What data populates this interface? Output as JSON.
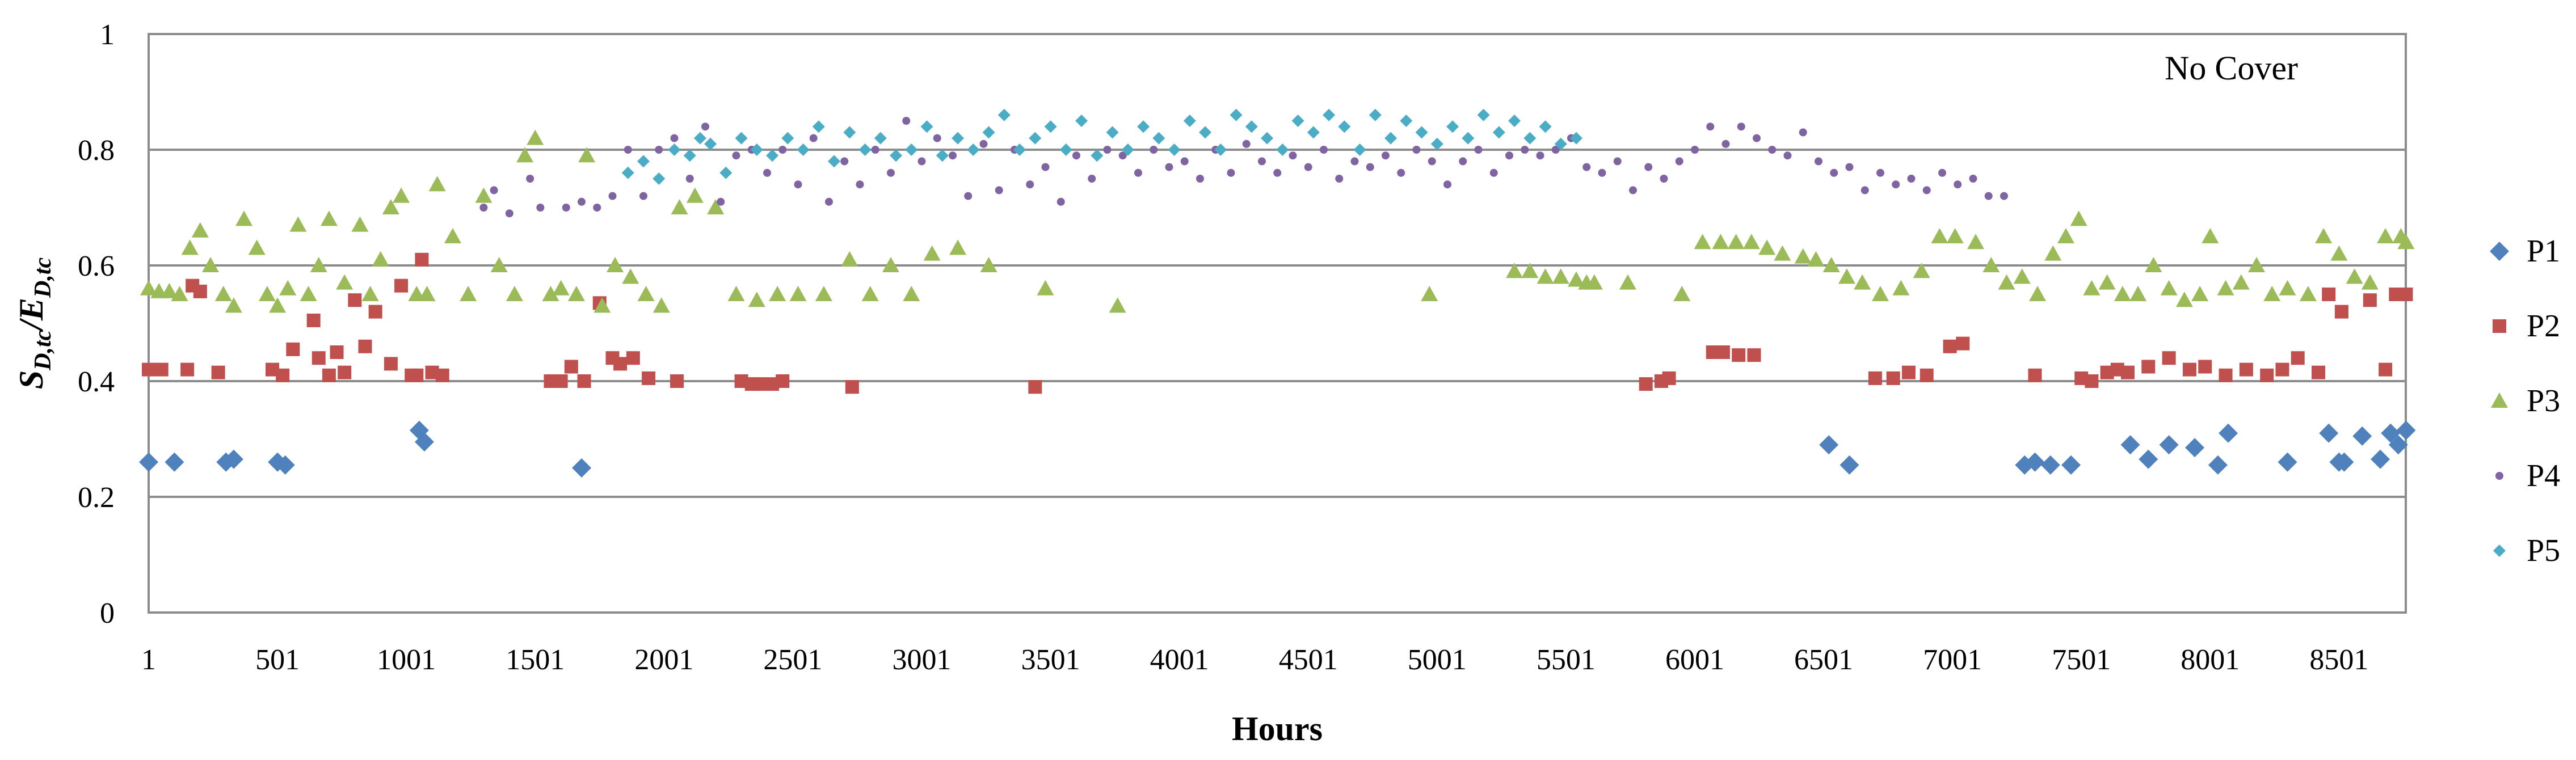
{
  "chart_data": {
    "type": "scatter",
    "title": "",
    "annotation": "No Cover",
    "xlabel": "Hours",
    "ylabel": "S",
    "ylabel_sub": "D,tc",
    "ylabel_sep": "/E",
    "ylabel_sub2": "D,tc",
    "xlim": [
      1,
      8760
    ],
    "ylim": [
      0,
      1
    ],
    "x_ticks": [
      "1",
      "501",
      "1001",
      "1501",
      "2001",
      "2501",
      "3001",
      "3501",
      "4001",
      "4501",
      "5001",
      "5501",
      "6001",
      "6501",
      "7001",
      "7501",
      "8001",
      "8501"
    ],
    "y_ticks": [
      "0",
      "0.2",
      "0.4",
      "0.6",
      "0.8",
      "1"
    ],
    "grid": "horizontal",
    "legend_position": "right",
    "series": [
      {
        "name": "P1",
        "color": "#4f81bd",
        "marker": "diamond",
        "x": [
          1,
          101,
          301,
          331,
          501,
          531,
          1051,
          1071,
          1681,
          6521,
          6601,
          7281,
          7321,
          7381,
          7461,
          7691,
          7761,
          7841,
          7941,
          8031,
          8071,
          8301,
          8461,
          8501,
          8521,
          8591,
          8661,
          8701,
          8731,
          8761
        ],
        "y": [
          0.26,
          0.26,
          0.26,
          0.265,
          0.26,
          0.255,
          0.315,
          0.295,
          0.25,
          0.29,
          0.255,
          0.255,
          0.26,
          0.255,
          0.255,
          0.29,
          0.265,
          0.29,
          0.285,
          0.255,
          0.31,
          0.26,
          0.31,
          0.26,
          0.26,
          0.305,
          0.265,
          0.31,
          0.29,
          0.315
        ]
      },
      {
        "name": "P2",
        "color": "#c0504d",
        "marker": "square",
        "x": [
          1,
          51,
          151,
          171,
          201,
          271,
          481,
          521,
          561,
          641,
          661,
          701,
          731,
          761,
          801,
          841,
          881,
          941,
          981,
          1021,
          1041,
          1061,
          1101,
          1141,
          1561,
          1601,
          1641,
          1691,
          1751,
          1801,
          1831,
          1881,
          1941,
          2051,
          2301,
          2341,
          2371,
          2421,
          2461,
          2731,
          3441,
          5811,
          5871,
          5901,
          6071,
          6111,
          6171,
          6231,
          6701,
          6771,
          6831,
          6901,
          6991,
          7041,
          7321,
          7501,
          7541,
          7601,
          7641,
          7681,
          7761,
          7841,
          7921,
          7981,
          8061,
          8141,
          8221,
          8281,
          8341,
          8421,
          8461,
          8511,
          8621,
          8681,
          8721,
          8761
        ],
        "y": [
          0.42,
          0.42,
          0.42,
          0.565,
          0.555,
          0.415,
          0.42,
          0.41,
          0.455,
          0.505,
          0.44,
          0.41,
          0.45,
          0.415,
          0.54,
          0.46,
          0.52,
          0.43,
          0.565,
          0.41,
          0.41,
          0.61,
          0.415,
          0.41,
          0.4,
          0.4,
          0.425,
          0.4,
          0.535,
          0.44,
          0.43,
          0.44,
          0.405,
          0.4,
          0.4,
          0.395,
          0.395,
          0.395,
          0.4,
          0.39,
          0.39,
          0.395,
          0.4,
          0.405,
          0.45,
          0.45,
          0.445,
          0.445,
          0.405,
          0.405,
          0.415,
          0.41,
          0.46,
          0.465,
          0.41,
          0.405,
          0.4,
          0.415,
          0.42,
          0.415,
          0.425,
          0.44,
          0.42,
          0.425,
          0.41,
          0.42,
          0.41,
          0.42,
          0.44,
          0.415,
          0.55,
          0.52,
          0.54,
          0.42,
          0.55,
          0.55
        ]
      },
      {
        "name": "P3",
        "color": "#9bbb59",
        "marker": "triangle",
        "x": [
          1,
          41,
          81,
          121,
          161,
          201,
          241,
          291,
          331,
          371,
          421,
          461,
          501,
          541,
          581,
          621,
          661,
          701,
          761,
          821,
          861,
          901,
          941,
          981,
          1041,
          1081,
          1121,
          1181,
          1241,
          1301,
          1361,
          1421,
          1461,
          1501,
          1561,
          1601,
          1661,
          1701,
          1761,
          1811,
          1871,
          1931,
          1991,
          2061,
          2121,
          2201,
          2281,
          2361,
          2441,
          2521,
          2621,
          2721,
          2801,
          2881,
          2961,
          3041,
          3141,
          3261,
          3481,
          3761,
          4971,
          5301,
          5361,
          5421,
          5481,
          5541,
          5581,
          5611,
          5741,
          5951,
          6031,
          6101,
          6161,
          6221,
          6281,
          6341,
          6421,
          6471,
          6531,
          6591,
          6651,
          6721,
          6801,
          6881,
          6951,
          7011,
          7091,
          7151,
          7211,
          7271,
          7331,
          7391,
          7441,
          7491,
          7541,
          7601,
          7661,
          7721,
          7781,
          7841,
          7901,
          7961,
          8001,
          8061,
          8121,
          8181,
          8241,
          8301,
          8381,
          8441,
          8501,
          8561,
          8621,
          8681,
          8741,
          8761
        ],
        "y": [
          0.56,
          0.555,
          0.555,
          0.55,
          0.63,
          0.66,
          0.6,
          0.55,
          0.53,
          0.68,
          0.63,
          0.55,
          0.53,
          0.56,
          0.67,
          0.55,
          0.6,
          0.68,
          0.57,
          0.67,
          0.55,
          0.61,
          0.7,
          0.72,
          0.55,
          0.55,
          0.74,
          0.65,
          0.55,
          0.72,
          0.6,
          0.55,
          0.79,
          0.82,
          0.55,
          0.56,
          0.55,
          0.79,
          0.53,
          0.6,
          0.58,
          0.55,
          0.53,
          0.7,
          0.72,
          0.7,
          0.55,
          0.54,
          0.55,
          0.55,
          0.55,
          0.61,
          0.55,
          0.6,
          0.55,
          0.62,
          0.63,
          0.6,
          0.56,
          0.53,
          0.55,
          0.59,
          0.59,
          0.58,
          0.58,
          0.575,
          0.57,
          0.57,
          0.57,
          0.55,
          0.64,
          0.64,
          0.64,
          0.64,
          0.63,
          0.62,
          0.615,
          0.61,
          0.6,
          0.58,
          0.57,
          0.55,
          0.56,
          0.59,
          0.65,
          0.65,
          0.64,
          0.6,
          0.57,
          0.58,
          0.55,
          0.62,
          0.65,
          0.68,
          0.56,
          0.57,
          0.55,
          0.55,
          0.6,
          0.56,
          0.54,
          0.55,
          0.65,
          0.56,
          0.57,
          0.6,
          0.55,
          0.56,
          0.55,
          0.65,
          0.62,
          0.58,
          0.57,
          0.65,
          0.65,
          0.64
        ]
      },
      {
        "name": "P4",
        "color": "#8064a2",
        "marker": "circle",
        "x": [
          1301,
          1341,
          1401,
          1481,
          1521,
          1621,
          1681,
          1741,
          1801,
          1861,
          1921,
          1981,
          2041,
          2101,
          2161,
          2221,
          2281,
          2341,
          2401,
          2461,
          2521,
          2581,
          2641,
          2701,
          2761,
          2821,
          2881,
          2941,
          3001,
          3061,
          3121,
          3181,
          3241,
          3301,
          3361,
          3421,
          3481,
          3541,
          3601,
          3661,
          3721,
          3781,
          3841,
          3901,
          3961,
          4021,
          4081,
          4141,
          4201,
          4261,
          4321,
          4381,
          4441,
          4501,
          4561,
          4621,
          4681,
          4741,
          4801,
          4861,
          4921,
          4981,
          5041,
          5101,
          5161,
          5221,
          5281,
          5341,
          5401,
          5461,
          5521,
          5581,
          5641,
          5701,
          5761,
          5821,
          5881,
          5941,
          6001,
          6061,
          6121,
          6181,
          6241,
          6301,
          6361,
          6421,
          6481,
          6541,
          6601,
          6661,
          6721,
          6781,
          6841,
          6901,
          6961,
          7021,
          7081,
          7141,
          7201
        ],
        "y": [
          0.7,
          0.73,
          0.69,
          0.75,
          0.7,
          0.7,
          0.71,
          0.7,
          0.72,
          0.8,
          0.72,
          0.8,
          0.82,
          0.75,
          0.84,
          0.71,
          0.79,
          0.8,
          0.76,
          0.8,
          0.74,
          0.82,
          0.71,
          0.78,
          0.74,
          0.8,
          0.76,
          0.85,
          0.78,
          0.82,
          0.79,
          0.72,
          0.81,
          0.73,
          0.8,
          0.74,
          0.77,
          0.71,
          0.79,
          0.75,
          0.8,
          0.79,
          0.76,
          0.8,
          0.77,
          0.78,
          0.75,
          0.8,
          0.76,
          0.81,
          0.78,
          0.76,
          0.79,
          0.77,
          0.8,
          0.75,
          0.78,
          0.77,
          0.79,
          0.76,
          0.8,
          0.78,
          0.74,
          0.78,
          0.8,
          0.76,
          0.79,
          0.8,
          0.79,
          0.8,
          0.82,
          0.77,
          0.76,
          0.78,
          0.73,
          0.77,
          0.75,
          0.78,
          0.8,
          0.84,
          0.81,
          0.84,
          0.82,
          0.8,
          0.79,
          0.83,
          0.78,
          0.76,
          0.77,
          0.73,
          0.76,
          0.74,
          0.75,
          0.73,
          0.76,
          0.74,
          0.75,
          0.72,
          0.72
        ]
      },
      {
        "name": "P5",
        "color": "#4bacc6",
        "marker": "star",
        "x": [
          1861,
          1921,
          1981,
          2041,
          2101,
          2141,
          2181,
          2241,
          2301,
          2361,
          2421,
          2481,
          2541,
          2601,
          2661,
          2721,
          2781,
          2841,
          2901,
          2961,
          3021,
          3081,
          3141,
          3201,
          3261,
          3321,
          3381,
          3441,
          3501,
          3561,
          3621,
          3681,
          3741,
          3801,
          3861,
          3921,
          3981,
          4041,
          4101,
          4161,
          4221,
          4281,
          4341,
          4401,
          4461,
          4521,
          4581,
          4641,
          4701,
          4761,
          4821,
          4881,
          4941,
          5001,
          5061,
          5121,
          5181,
          5241,
          5301,
          5361,
          5421,
          5481,
          5541
        ],
        "y": [
          0.76,
          0.78,
          0.75,
          0.8,
          0.79,
          0.82,
          0.81,
          0.76,
          0.82,
          0.8,
          0.79,
          0.82,
          0.8,
          0.84,
          0.78,
          0.83,
          0.8,
          0.82,
          0.79,
          0.8,
          0.84,
          0.79,
          0.82,
          0.8,
          0.83,
          0.86,
          0.8,
          0.82,
          0.84,
          0.8,
          0.85,
          0.79,
          0.83,
          0.8,
          0.84,
          0.82,
          0.8,
          0.85,
          0.83,
          0.8,
          0.86,
          0.84,
          0.82,
          0.8,
          0.85,
          0.83,
          0.86,
          0.84,
          0.8,
          0.86,
          0.82,
          0.85,
          0.83,
          0.81,
          0.84,
          0.82,
          0.86,
          0.83,
          0.85,
          0.82,
          0.84,
          0.81,
          0.82
        ]
      }
    ]
  }
}
